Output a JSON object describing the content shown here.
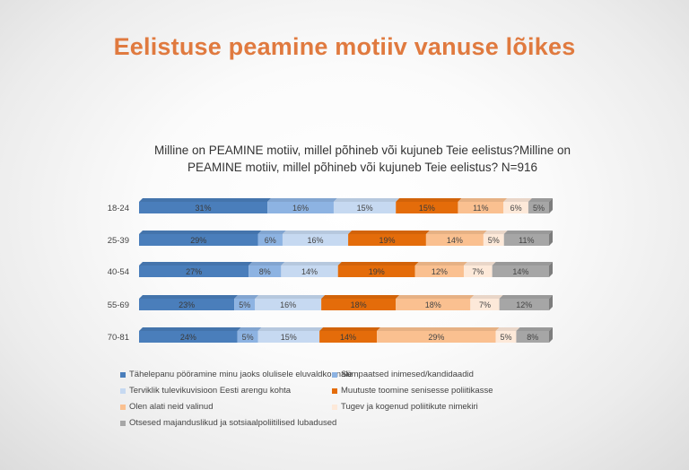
{
  "page_title": "Eelistuse peamine motiiv vanuse lõikes",
  "chart_data": {
    "type": "bar",
    "orientation": "horizontal",
    "stacked": "percent",
    "title": "Milline on PEAMINE motiiv, millel põhineb või kujuneb Teie eelistus?Milline on PEAMINE motiiv, millel põhineb või kujuneb Teie eelistus? N=916",
    "categories": [
      "18-24",
      "25-39",
      "40-54",
      "55-69",
      "70-81"
    ],
    "legend_position": "bottom",
    "grid": false,
    "series": [
      {
        "name": "Tähelepanu pööramine minu jaoks olulisele eluvaldkonnale",
        "color": "#4a7ebb",
        "values": [
          31,
          29,
          27,
          23,
          24
        ]
      },
      {
        "name": "Sümpaatsed inimesed/kandidaadid",
        "color": "#8db3e2",
        "values": [
          16,
          6,
          8,
          5,
          5
        ]
      },
      {
        "name": "Terviklik tulevikuvisioon Eesti arengu kohta",
        "color": "#c6d9f1",
        "values": [
          15,
          16,
          14,
          16,
          15
        ]
      },
      {
        "name": "Muutuste toomine senisesse poliitikasse",
        "color": "#e46c0a",
        "values": [
          15,
          19,
          19,
          18,
          14
        ]
      },
      {
        "name": "Olen alati neid valinud",
        "color": "#fac090",
        "values": [
          11,
          14,
          12,
          18,
          29
        ]
      },
      {
        "name": "Tugev ja kogenud poliitikute nimekiri",
        "color": "#fde9d9",
        "values": [
          6,
          5,
          7,
          7,
          5
        ]
      },
      {
        "name": "Otsesed majanduslikud ja sotsiaalpoliitilised lubadused",
        "color": "#a6a6a6",
        "values": [
          5,
          11,
          14,
          12,
          8
        ]
      }
    ],
    "value_suffix": "%"
  }
}
